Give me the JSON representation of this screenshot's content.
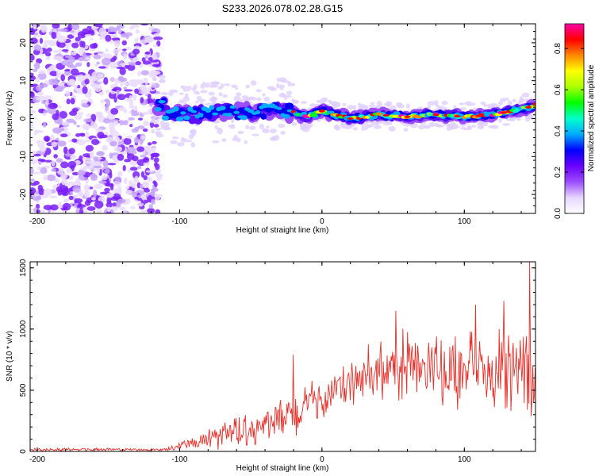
{
  "figure_title": "S233.2026.078.02.28.G15",
  "chart_data": [
    {
      "type": "heatmap",
      "title": "S233.2026.078.02.28.G15",
      "xlabel": "Height of straight line (km)",
      "ylabel": "Frequency (Hz)",
      "xlim": [
        -205,
        150
      ],
      "ylim": [
        -25,
        25
      ],
      "x_ticks": [
        -200,
        -100,
        0,
        100
      ],
      "y_ticks": [
        -20,
        -10,
        0,
        10,
        20
      ],
      "colorbar": {
        "label": "Normalized spectral amplitude",
        "range": [
          0.0,
          0.92
        ],
        "ticks": [
          0.0,
          0.2,
          0.4,
          0.6,
          0.8
        ],
        "colormap": [
          "#ffffff",
          "#e6d6ff",
          "#9b4dff",
          "#6a00ff",
          "#0000ff",
          "#00aaff",
          "#00ffcc",
          "#00ff00",
          "#aaff00",
          "#ffff00",
          "#ff8800",
          "#ff0000",
          "#ff00aa"
        ]
      },
      "band_center_hz": [
        {
          "x": -110,
          "y": 1.5
        },
        {
          "x": -90,
          "y": 1.0
        },
        {
          "x": -70,
          "y": 2.0
        },
        {
          "x": -50,
          "y": 1.5
        },
        {
          "x": -30,
          "y": 2.5
        },
        {
          "x": -20,
          "y": 1.5
        },
        {
          "x": -10,
          "y": 0.5
        },
        {
          "x": 0,
          "y": 2.0
        },
        {
          "x": 10,
          "y": 1.0
        },
        {
          "x": 20,
          "y": 0.0
        },
        {
          "x": 40,
          "y": 1.0
        },
        {
          "x": 60,
          "y": 0.5
        },
        {
          "x": 80,
          "y": 1.0
        },
        {
          "x": 100,
          "y": 0.5
        },
        {
          "x": 120,
          "y": 1.0
        },
        {
          "x": 140,
          "y": 2.5
        },
        {
          "x": 150,
          "y": 3.5
        }
      ],
      "noise_region_x": [
        -205,
        -120
      ]
    },
    {
      "type": "line",
      "xlabel": "Height of straight line (km)",
      "ylabel": "SNR (10 * v/v)",
      "xlim": [
        -205,
        150
      ],
      "ylim": [
        0,
        1550
      ],
      "x_ticks": [
        -200,
        -100,
        0,
        100
      ],
      "y_ticks": [
        0,
        500,
        1000,
        1500
      ],
      "series": [
        {
          "name": "SNR",
          "color": "#e8302a",
          "envelope": [
            {
              "x": -205,
              "mean": 15,
              "spread": 15
            },
            {
              "x": -110,
              "mean": 15,
              "spread": 12
            },
            {
              "x": -100,
              "mean": 40,
              "spread": 40
            },
            {
              "x": -80,
              "mean": 90,
              "spread": 90
            },
            {
              "x": -60,
              "mean": 150,
              "spread": 150
            },
            {
              "x": -40,
              "mean": 210,
              "spread": 200
            },
            {
              "x": -20,
              "mean": 290,
              "spread": 260
            },
            {
              "x": 0,
              "mean": 420,
              "spread": 200
            },
            {
              "x": 20,
              "mean": 540,
              "spread": 250
            },
            {
              "x": 40,
              "mean": 650,
              "spread": 300
            },
            {
              "x": 60,
              "mean": 680,
              "spread": 350
            },
            {
              "x": 80,
              "mean": 650,
              "spread": 350
            },
            {
              "x": 100,
              "mean": 640,
              "spread": 380
            },
            {
              "x": 120,
              "mean": 640,
              "spread": 400
            },
            {
              "x": 150,
              "mean": 620,
              "spread": 400
            }
          ],
          "peaks": [
            {
              "x": -20,
              "y": 790
            },
            {
              "x": 52,
              "y": 1150
            },
            {
              "x": 108,
              "y": 1200
            },
            {
              "x": 128,
              "y": 1230
            },
            {
              "x": 146,
              "y": 1560
            }
          ]
        }
      ]
    }
  ]
}
